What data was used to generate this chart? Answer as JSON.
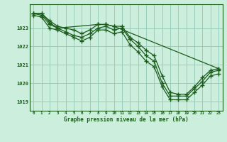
{
  "background_color": "#cceedd",
  "grid_color": "#99ccbb",
  "line_color": "#1a5c1a",
  "marker_color": "#1a5c1a",
  "xlabel": "Graphe pression niveau de la mer (hPa)",
  "xlim": [
    -0.5,
    23.5
  ],
  "ylim": [
    1018.5,
    1024.3
  ],
  "yticks": [
    1019,
    1020,
    1021,
    1022,
    1023
  ],
  "xticks": [
    0,
    1,
    2,
    3,
    4,
    5,
    6,
    7,
    8,
    9,
    10,
    11,
    12,
    13,
    14,
    15,
    16,
    17,
    18,
    19,
    20,
    21,
    22,
    23
  ],
  "series": [
    {
      "x": [
        0,
        1,
        2,
        3,
        4,
        5,
        6,
        7,
        8,
        9,
        10,
        11,
        12,
        13,
        14,
        15,
        16,
        17,
        18,
        19,
        20,
        21,
        22,
        23
      ],
      "y": [
        1023.8,
        1023.8,
        1023.4,
        1023.1,
        1023.0,
        1022.9,
        1022.7,
        1022.9,
        1023.2,
        1023.2,
        1023.1,
        1023.1,
        1022.5,
        1022.2,
        1021.8,
        1021.5,
        1020.4,
        1019.5,
        1019.4,
        1019.4,
        1019.8,
        1020.3,
        1020.7,
        1020.8
      ]
    },
    {
      "x": [
        0,
        1,
        2,
        3,
        4,
        5,
        6,
        7,
        8,
        9,
        10,
        11,
        12,
        13,
        14,
        15,
        16,
        17,
        18,
        19,
        20,
        21,
        22,
        23
      ],
      "y": [
        1023.8,
        1023.7,
        1023.2,
        1023.0,
        1022.8,
        1022.6,
        1022.5,
        1022.7,
        1023.0,
        1023.1,
        1022.9,
        1023.0,
        1022.4,
        1022.0,
        1021.5,
        1021.2,
        1020.0,
        1019.3,
        1019.3,
        1019.3,
        1019.7,
        1020.1,
        1020.6,
        1020.7
      ]
    },
    {
      "x": [
        0,
        1,
        2,
        3,
        4,
        5,
        6,
        7,
        8,
        9,
        10,
        11,
        12,
        13,
        14,
        15,
        16,
        17,
        18,
        19,
        20,
        21,
        22,
        23
      ],
      "y": [
        1023.7,
        1023.6,
        1023.0,
        1022.9,
        1022.7,
        1022.5,
        1022.3,
        1022.5,
        1022.9,
        1022.9,
        1022.7,
        1022.8,
        1022.1,
        1021.7,
        1021.2,
        1020.9,
        1019.8,
        1019.1,
        1019.1,
        1019.1,
        1019.5,
        1019.9,
        1020.4,
        1020.5
      ]
    },
    {
      "x": [
        0,
        1,
        2,
        3,
        8,
        9,
        10,
        23
      ],
      "y": [
        1023.8,
        1023.8,
        1023.3,
        1023.0,
        1023.2,
        1023.2,
        1023.1,
        1020.8
      ]
    }
  ]
}
